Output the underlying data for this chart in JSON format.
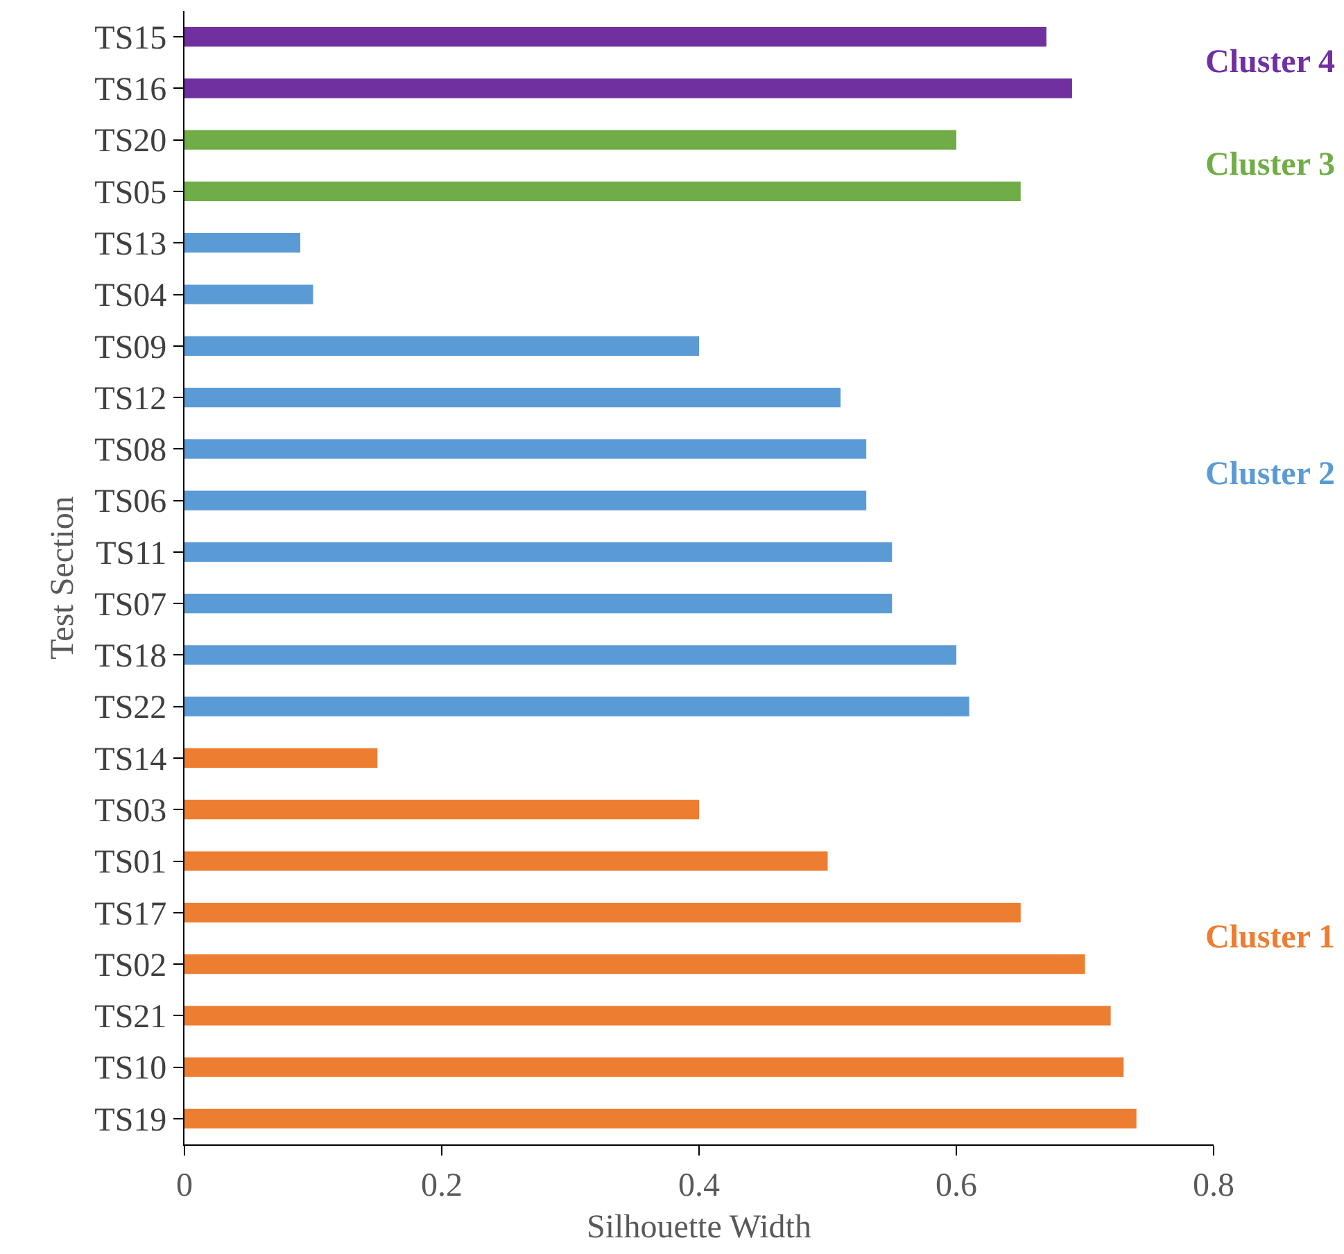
{
  "chart_data": {
    "type": "bar",
    "orientation": "horizontal",
    "xlabel": "Silhouette Width",
    "ylabel": "Test Section",
    "categories": [
      "TS15",
      "TS16",
      "TS20",
      "TS05",
      "TS13",
      "TS04",
      "TS09",
      "TS12",
      "TS08",
      "TS06",
      "TS11",
      "TS07",
      "TS18",
      "TS22",
      "TS14",
      "TS03",
      "TS01",
      "TS17",
      "TS02",
      "TS21",
      "TS10",
      "TS19"
    ],
    "series": [
      {
        "name": "Cluster 4",
        "color": "#7030a0",
        "values": [
          0.67,
          0.69,
          null,
          null,
          null,
          null,
          null,
          null,
          null,
          null,
          null,
          null,
          null,
          null,
          null,
          null,
          null,
          null,
          null,
          null,
          null,
          null
        ]
      },
      {
        "name": "Cluster 3",
        "color": "#70ad47",
        "values": [
          null,
          null,
          0.6,
          0.65,
          null,
          null,
          null,
          null,
          null,
          null,
          null,
          null,
          null,
          null,
          null,
          null,
          null,
          null,
          null,
          null,
          null,
          null
        ]
      },
      {
        "name": "Cluster 2",
        "color": "#5b9bd5",
        "values": [
          null,
          null,
          null,
          null,
          0.09,
          0.1,
          0.4,
          0.51,
          0.53,
          0.53,
          0.55,
          0.55,
          0.6,
          0.61,
          null,
          null,
          null,
          null,
          null,
          null,
          null,
          null
        ]
      },
      {
        "name": "Cluster 1",
        "color": "#ed7d31",
        "values": [
          null,
          null,
          null,
          null,
          null,
          null,
          null,
          null,
          null,
          null,
          null,
          null,
          null,
          null,
          0.15,
          0.4,
          0.5,
          0.65,
          0.7,
          0.72,
          0.73,
          0.74
        ]
      }
    ],
    "xlim": [
      0,
      0.8
    ],
    "xticks": [
      0,
      0.2,
      0.4,
      0.6,
      0.8
    ],
    "grid": false,
    "legend": false
  }
}
